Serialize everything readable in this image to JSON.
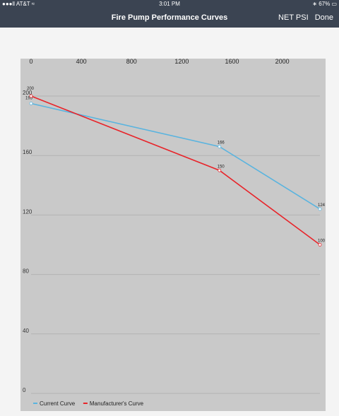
{
  "status_bar": {
    "carrier": "AT&T",
    "time": "3:01 PM",
    "battery": "67%",
    "icons": [
      "signal-icon",
      "wifi-icon",
      "bluetooth-icon",
      "battery-icon"
    ]
  },
  "nav": {
    "title": "Fire Pump Performance Curves",
    "net_psi_label": "NET PSI",
    "done_label": "Done"
  },
  "chart_data": {
    "type": "line",
    "title": "",
    "xlabel": "",
    "ylabel": "",
    "xlim": [
      0,
      2300
    ],
    "ylim": [
      0,
      200
    ],
    "x_ticks": [
      0,
      400,
      800,
      1200,
      1600,
      2000
    ],
    "y_ticks": [
      0,
      40,
      80,
      120,
      160,
      200
    ],
    "grid": true,
    "legend": "bottom-left",
    "series": [
      {
        "name": "Current Curve",
        "color": "#5ab4df",
        "points": [
          [
            0,
            195
          ],
          [
            1500,
            166
          ],
          [
            2300,
            124
          ]
        ],
        "labels": [
          "195",
          "166",
          "124"
        ]
      },
      {
        "name": "Manufacturer's Curve",
        "color": "#e8242a",
        "points": [
          [
            0,
            200
          ],
          [
            1500,
            150
          ],
          [
            2300,
            100
          ]
        ],
        "labels": [
          "200",
          "150",
          "100"
        ]
      }
    ]
  }
}
